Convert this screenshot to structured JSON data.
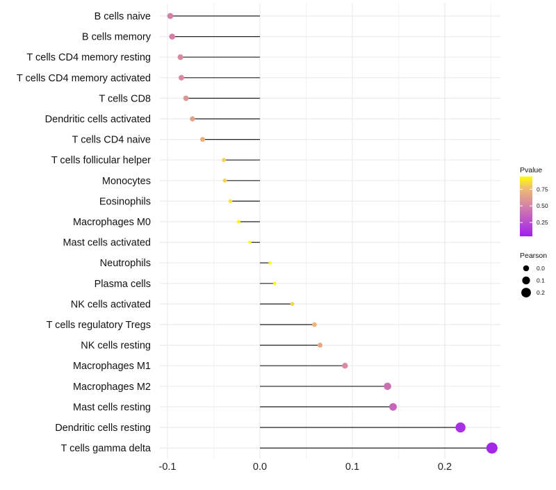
{
  "chart_data": {
    "type": "lollipop",
    "title": "",
    "xlabel": "",
    "ylabel": "",
    "xlim": [
      -0.1,
      0.255
    ],
    "xticks": [
      "-0.1",
      "0.0",
      "0.1",
      "0.2"
    ],
    "xtick_values": [
      -0.1,
      0,
      0.1,
      0.2
    ],
    "grid": true,
    "categories": [
      "B cells naive",
      "B cells memory",
      "T cells CD4 memory resting",
      "T cells CD4 memory activated",
      "T cells CD8",
      "Dendritic cells activated",
      "T cells CD4 naive",
      "T cells follicular helper",
      "Monocytes",
      "Eosinophils",
      "Macrophages M0",
      "Mast cells activated",
      "Neutrophils",
      "Plasma cells",
      "NK cells activated",
      "T cells regulatory  Tregs",
      "NK cells resting",
      "Macrophages M1",
      "Macrophages M2",
      "Mast cells resting",
      "Dendritic cells resting",
      "T cells gamma delta"
    ],
    "values": [
      -0.097,
      -0.095,
      -0.086,
      -0.085,
      -0.08,
      -0.073,
      -0.062,
      -0.039,
      -0.038,
      -0.032,
      -0.023,
      -0.011,
      0.011,
      0.016,
      0.035,
      0.059,
      0.065,
      0.092,
      0.138,
      0.144,
      0.217,
      0.251
    ],
    "pvalues": [
      0.45,
      0.45,
      0.5,
      0.5,
      0.55,
      0.62,
      0.68,
      0.8,
      0.8,
      0.85,
      0.88,
      0.9,
      0.92,
      0.9,
      0.8,
      0.7,
      0.65,
      0.5,
      0.38,
      0.33,
      0.08,
      0.03
    ],
    "legend": {
      "color_title": "Pvalue",
      "color_ticks": [
        "0.75",
        "0.50",
        "0.25"
      ],
      "color_tick_values": [
        0.75,
        0.5,
        0.25
      ],
      "size_title": "Pearson",
      "size_labels": [
        "0.0",
        "0.1",
        "0.2"
      ],
      "size_values": [
        0,
        0.1,
        0.2
      ],
      "placement": "right"
    },
    "colors": {
      "low": "#A020F0",
      "mid": "#D98AA0",
      "high": "#FFFF00"
    }
  }
}
